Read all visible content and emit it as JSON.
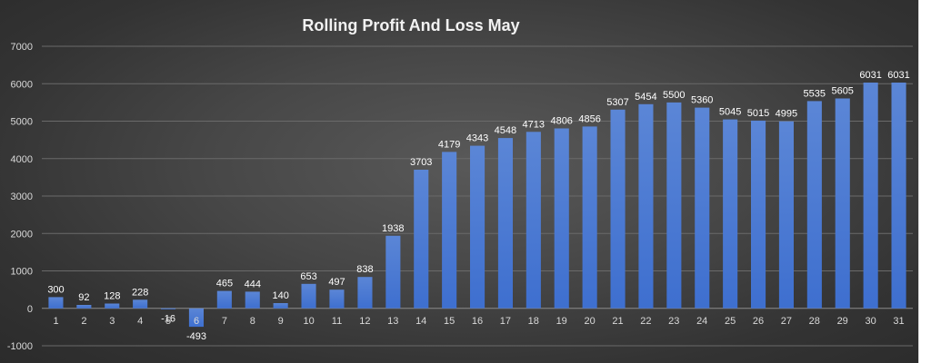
{
  "chart_data": {
    "type": "bar",
    "title": "Rolling Profit And Loss May",
    "xlabel": "",
    "ylabel": "",
    "categories": [
      "1",
      "2",
      "3",
      "4",
      "5",
      "6",
      "7",
      "8",
      "9",
      "10",
      "11",
      "12",
      "13",
      "14",
      "15",
      "16",
      "17",
      "18",
      "19",
      "20",
      "21",
      "22",
      "23",
      "24",
      "25",
      "26",
      "27",
      "28",
      "29",
      "30",
      "31"
    ],
    "values": [
      300,
      92,
      128,
      228,
      -16,
      -493,
      465,
      444,
      140,
      653,
      497,
      838,
      1938,
      3703,
      4179,
      4343,
      4548,
      4713,
      4806,
      4856,
      5307,
      5454,
      5500,
      5360,
      5045,
      5015,
      4995,
      5535,
      5605,
      6031,
      6031
    ],
    "ylim": [
      -1000,
      7000
    ],
    "yticks": [
      -1000,
      0,
      1000,
      2000,
      3000,
      4000,
      5000,
      6000,
      7000
    ],
    "grid": true,
    "data_labels": true,
    "colors": {
      "bar_top": "#5b86d6",
      "bar_bottom": "#3e6fcf",
      "axis_text": "#d9d9d9",
      "grid": "#6a6a6a",
      "title": "#f2f2f2"
    }
  }
}
